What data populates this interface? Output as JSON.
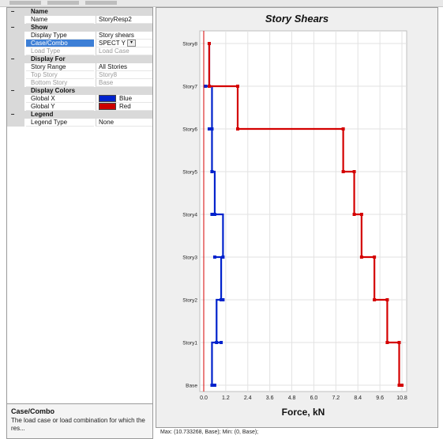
{
  "properties": [
    {
      "kind": "cat",
      "name": "Name"
    },
    {
      "kind": "item",
      "name": "Name",
      "value": "StoryResp2"
    },
    {
      "kind": "cat",
      "name": "Show"
    },
    {
      "kind": "item",
      "name": "Display Type",
      "value": "Story shears"
    },
    {
      "kind": "item",
      "name": "Case/Combo",
      "value": "SPECT Y",
      "selected": true
    },
    {
      "kind": "item",
      "name": "Load Type",
      "value": "Load Case",
      "disabled": true
    },
    {
      "kind": "cat",
      "name": "Display For"
    },
    {
      "kind": "item",
      "name": "Story Range",
      "value": "All Stories"
    },
    {
      "kind": "item",
      "name": "Top Story",
      "value": "Story8",
      "disabled": true
    },
    {
      "kind": "item",
      "name": "Bottom Story",
      "value": "Base",
      "disabled": true
    },
    {
      "kind": "cat",
      "name": "Display Colors"
    },
    {
      "kind": "item",
      "name": "Global X",
      "value": "Blue",
      "swatch": "blue"
    },
    {
      "kind": "item",
      "name": "Global Y",
      "value": "Red",
      "swatch": "red"
    },
    {
      "kind": "cat",
      "name": "Legend"
    },
    {
      "kind": "item",
      "name": "Legend Type",
      "value": "None"
    }
  ],
  "help": {
    "title": "Case/Combo",
    "text": "The load case or load combination for which the res..."
  },
  "chart_data": {
    "type": "line",
    "title": "Story Shears",
    "xlabel": "Force, kN",
    "ylabel": "",
    "xlim": [
      0,
      10.8
    ],
    "xticks": [
      "0.0",
      "1.2",
      "2.4",
      "3.6",
      "4.8",
      "6.0",
      "7.2",
      "8.4",
      "9.6",
      "10.8"
    ],
    "stories": [
      "Base",
      "Story1",
      "Story2",
      "Story3",
      "Story4",
      "Story5",
      "Story6",
      "Story7",
      "Story8"
    ],
    "colors": {
      "x": "#0022cc",
      "y": "#d40000"
    },
    "series": [
      {
        "key": "x",
        "top": [
          0.45,
          0.7,
          0.95,
          1.05,
          0.6,
          0.45,
          0.45,
          0.3
        ],
        "bottom": [
          0.6,
          0.95,
          1.05,
          0.6,
          0.45,
          0.45,
          0.3,
          0.1
        ]
      },
      {
        "key": "y",
        "top": [
          10.65,
          10.0,
          9.3,
          8.6,
          8.2,
          7.6,
          1.85,
          0.3
        ],
        "bottom": [
          10.8,
          10.65,
          10.0,
          9.3,
          8.6,
          8.2,
          7.6,
          1.85
        ]
      }
    ]
  },
  "status_bar": "Max: (10.733268, Base);   Min: (0, Base);"
}
